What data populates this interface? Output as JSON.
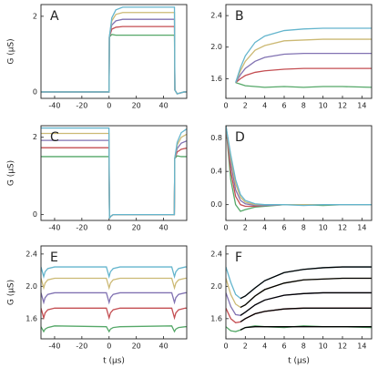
{
  "chart_data": [
    {
      "type": "line",
      "panel": "A",
      "ylabel": "G (μS)",
      "x": [
        -50,
        0,
        0.2,
        2,
        5,
        10,
        20,
        48,
        48.3,
        50,
        55,
        58
      ],
      "xlim": [
        -50,
        57
      ],
      "xticks": [
        -40,
        -20,
        0,
        20,
        40
      ],
      "ylim": [
        -0.17,
        2.31
      ],
      "yticks": [
        0,
        2
      ],
      "series": [
        {
          "color": "#55a868",
          "values": [
            0,
            0,
            1.45,
            1.52,
            1.5,
            1.5,
            1.5,
            1.5,
            0.05,
            -0.05,
            0,
            0
          ]
        },
        {
          "color": "#c44e52",
          "values": [
            0,
            0,
            1.45,
            1.66,
            1.71,
            1.73,
            1.73,
            1.73,
            0.05,
            -0.05,
            0,
            0
          ]
        },
        {
          "color": "#8172b2",
          "values": [
            0,
            0,
            1.45,
            1.77,
            1.88,
            1.92,
            1.92,
            1.92,
            0.05,
            -0.05,
            0,
            0
          ]
        },
        {
          "color": "#ccb974",
          "values": [
            0,
            0,
            1.45,
            1.88,
            2.05,
            2.1,
            2.1,
            2.1,
            0.05,
            -0.05,
            0,
            0
          ]
        },
        {
          "color": "#64b5cd",
          "values": [
            0,
            0,
            1.45,
            1.96,
            2.17,
            2.24,
            2.24,
            2.24,
            0.05,
            -0.05,
            0,
            0
          ]
        }
      ]
    },
    {
      "type": "line",
      "panel": "B",
      "x": [
        1,
        1.5,
        2,
        3,
        4,
        6,
        8,
        10,
        12,
        15
      ],
      "xlim": [
        0,
        15
      ],
      "xticks": [
        0,
        2,
        4,
        6,
        8,
        10,
        12,
        14
      ],
      "ylim": [
        1.35,
        2.54
      ],
      "yticks": [
        1.6,
        {
          "value": 2,
          "label": "2.0"
        },
        2.4
      ],
      "series": [
        {
          "color": "#55a868",
          "values": [
            1.55,
            1.53,
            1.51,
            1.5,
            1.49,
            1.5,
            1.49,
            1.5,
            1.5,
            1.49
          ]
        },
        {
          "color": "#c44e52",
          "values": [
            1.55,
            1.6,
            1.64,
            1.68,
            1.7,
            1.72,
            1.73,
            1.73,
            1.73,
            1.73
          ]
        },
        {
          "color": "#8172b2",
          "values": [
            1.55,
            1.65,
            1.73,
            1.82,
            1.87,
            1.91,
            1.92,
            1.92,
            1.92,
            1.92
          ]
        },
        {
          "color": "#ccb974",
          "values": [
            1.55,
            1.7,
            1.82,
            1.96,
            2.02,
            2.08,
            2.09,
            2.1,
            2.1,
            2.1
          ]
        },
        {
          "color": "#64b5cd",
          "values": [
            1.55,
            1.74,
            1.89,
            2.06,
            2.14,
            2.21,
            2.23,
            2.24,
            2.24,
            2.24
          ]
        }
      ]
    },
    {
      "type": "line",
      "panel": "C",
      "ylabel": "G (μS)",
      "x": [
        -50,
        -0.1,
        0.3,
        1,
        3,
        10,
        47.9,
        48.2,
        50,
        53,
        58
      ],
      "xlim": [
        -50,
        57
      ],
      "xticks": [
        -40,
        -20,
        0,
        20,
        40
      ],
      "ylim": [
        -0.15,
        2.3
      ],
      "yticks": [
        0,
        2
      ],
      "series": [
        {
          "color": "#55a868",
          "values": [
            1.5,
            1.5,
            -0.1,
            -0.05,
            0,
            0,
            0,
            1.45,
            1.52,
            1.5,
            1.5
          ]
        },
        {
          "color": "#c44e52",
          "values": [
            1.73,
            1.73,
            -0.1,
            -0.05,
            0,
            0,
            0,
            1.45,
            1.62,
            1.69,
            1.73
          ]
        },
        {
          "color": "#8172b2",
          "values": [
            1.92,
            1.92,
            -0.1,
            -0.05,
            0,
            0,
            0,
            1.45,
            1.71,
            1.85,
            1.92
          ]
        },
        {
          "color": "#ccb974",
          "values": [
            2.1,
            2.1,
            -0.1,
            -0.05,
            0,
            0,
            0,
            1.45,
            1.8,
            2.0,
            2.1
          ]
        },
        {
          "color": "#64b5cd",
          "values": [
            2.24,
            2.24,
            -0.1,
            -0.05,
            0,
            0,
            0,
            1.45,
            1.87,
            2.12,
            2.24
          ]
        }
      ]
    },
    {
      "type": "line",
      "panel": "D",
      "x": [
        0,
        0.5,
        1,
        1.5,
        2,
        3,
        4,
        6,
        8,
        10,
        12,
        15
      ],
      "xlim": [
        0,
        15
      ],
      "xticks": [
        0,
        2,
        4,
        6,
        8,
        10,
        12,
        14
      ],
      "ylim": [
        -0.19,
        0.95
      ],
      "yticks": [
        {
          "value": 0,
          "label": "0.0"
        },
        {
          "value": 0.4,
          "label": "0.4"
        },
        {
          "value": 0.8,
          "label": "0.8"
        }
      ],
      "series": [
        {
          "color": "#55a868",
          "values": [
            0.95,
            0.3,
            0,
            -0.08,
            -0.06,
            -0.03,
            -0.02,
            0,
            0,
            -0.01,
            0,
            0
          ]
        },
        {
          "color": "#c44e52",
          "values": [
            0.95,
            0.4,
            0.1,
            0,
            -0.02,
            -0.02,
            -0.01,
            0,
            0,
            0,
            0,
            0
          ]
        },
        {
          "color": "#8172b2",
          "values": [
            0.95,
            0.5,
            0.18,
            0.05,
            0.01,
            -0.01,
            -0.01,
            0,
            0,
            0,
            0,
            0
          ]
        },
        {
          "color": "#ccb974",
          "values": [
            0.95,
            0.55,
            0.25,
            0.09,
            0.03,
            0,
            0,
            0,
            0,
            0,
            0,
            0
          ]
        },
        {
          "color": "#64b5cd",
          "values": [
            0.95,
            0.6,
            0.3,
            0.12,
            0.05,
            0.01,
            0,
            0,
            -0.01,
            0,
            0,
            0
          ]
        }
      ]
    },
    {
      "type": "line",
      "panel": "E",
      "ylabel": "G (μS)",
      "xlabel": "t (μs)",
      "x": [
        -50,
        -48,
        -47,
        -45,
        -40,
        -2,
        0,
        1,
        3,
        8,
        46,
        48,
        49,
        51,
        56,
        58
      ],
      "xlim": [
        -50,
        57
      ],
      "xticks": [
        -40,
        -20,
        0,
        20,
        40
      ],
      "ylim": [
        1.35,
        2.5
      ],
      "yticks": [
        1.6,
        {
          "value": 2,
          "label": "2.0"
        },
        2.4
      ],
      "series": [
        {
          "color": "#55a868",
          "values": [
            1.5,
            1.44,
            1.47,
            1.49,
            1.51,
            1.5,
            1.44,
            1.47,
            1.49,
            1.5,
            1.51,
            1.44,
            1.47,
            1.49,
            1.5,
            1.5
          ]
        },
        {
          "color": "#c44e52",
          "values": [
            1.73,
            1.61,
            1.67,
            1.71,
            1.73,
            1.73,
            1.61,
            1.67,
            1.71,
            1.73,
            1.73,
            1.61,
            1.67,
            1.71,
            1.73,
            1.73
          ]
        },
        {
          "color": "#8172b2",
          "values": [
            1.92,
            1.8,
            1.86,
            1.9,
            1.92,
            1.92,
            1.8,
            1.86,
            1.9,
            1.92,
            1.92,
            1.8,
            1.86,
            1.9,
            1.92,
            1.92
          ]
        },
        {
          "color": "#ccb974",
          "values": [
            2.1,
            1.98,
            2.04,
            2.08,
            2.1,
            2.1,
            1.98,
            2.04,
            2.08,
            2.1,
            2.1,
            1.98,
            2.04,
            2.08,
            2.1,
            2.1
          ]
        },
        {
          "color": "#64b5cd",
          "values": [
            2.24,
            2.12,
            2.18,
            2.22,
            2.24,
            2.24,
            2.12,
            2.18,
            2.22,
            2.24,
            2.24,
            2.12,
            2.18,
            2.22,
            2.24,
            2.24
          ]
        }
      ]
    },
    {
      "type": "line",
      "panel": "F",
      "xlabel": "t (μs)",
      "x": [
        0,
        0.5,
        1,
        1.5,
        2,
        3,
        4,
        6,
        8,
        10,
        12,
        15
      ],
      "xlim": [
        0,
        15
      ],
      "xticks": [
        0,
        2,
        4,
        6,
        8,
        10,
        12,
        14
      ],
      "ylim": [
        1.35,
        2.5
      ],
      "yticks": [
        1.6,
        {
          "value": 2,
          "label": "2.0"
        },
        2.4
      ],
      "series": [
        {
          "color": "#55a868",
          "values": [
            1.5,
            1.45,
            1.44,
            1.46,
            1.49,
            1.51,
            1.5,
            1.49,
            1.51,
            1.5,
            1.5,
            1.49
          ]
        },
        {
          "color": "#c44e52",
          "values": [
            1.73,
            1.6,
            1.55,
            1.56,
            1.6,
            1.66,
            1.69,
            1.72,
            1.73,
            1.73,
            1.73,
            1.73
          ]
        },
        {
          "color": "#8172b2",
          "values": [
            1.92,
            1.75,
            1.65,
            1.64,
            1.68,
            1.77,
            1.83,
            1.89,
            1.91,
            1.92,
            1.92,
            1.92
          ]
        },
        {
          "color": "#ccb974",
          "values": [
            2.1,
            1.9,
            1.78,
            1.74,
            1.77,
            1.88,
            1.96,
            2.04,
            2.08,
            2.09,
            2.1,
            2.1
          ]
        },
        {
          "color": "#64b5cd",
          "values": [
            2.24,
            2.05,
            1.9,
            1.85,
            1.88,
            1.98,
            2.07,
            2.17,
            2.21,
            2.23,
            2.24,
            2.24
          ]
        },
        {
          "color": "#000000",
          "values": [
            null,
            null,
            null,
            1.46,
            1.49,
            1.5,
            1.5,
            1.5,
            1.5,
            1.5,
            1.5,
            1.5
          ]
        },
        {
          "color": "#000000",
          "values": [
            null,
            null,
            null,
            1.56,
            1.6,
            1.66,
            1.69,
            1.72,
            1.73,
            1.73,
            1.73,
            1.73
          ]
        },
        {
          "color": "#000000",
          "values": [
            null,
            null,
            null,
            1.64,
            1.68,
            1.77,
            1.83,
            1.89,
            1.91,
            1.92,
            1.92,
            1.92
          ]
        },
        {
          "color": "#000000",
          "values": [
            null,
            null,
            null,
            1.74,
            1.77,
            1.88,
            1.96,
            2.04,
            2.08,
            2.09,
            2.1,
            2.1
          ]
        },
        {
          "color": "#000000",
          "values": [
            null,
            null,
            null,
            1.85,
            1.88,
            1.98,
            2.07,
            2.17,
            2.21,
            2.23,
            2.24,
            2.24
          ]
        }
      ]
    }
  ]
}
